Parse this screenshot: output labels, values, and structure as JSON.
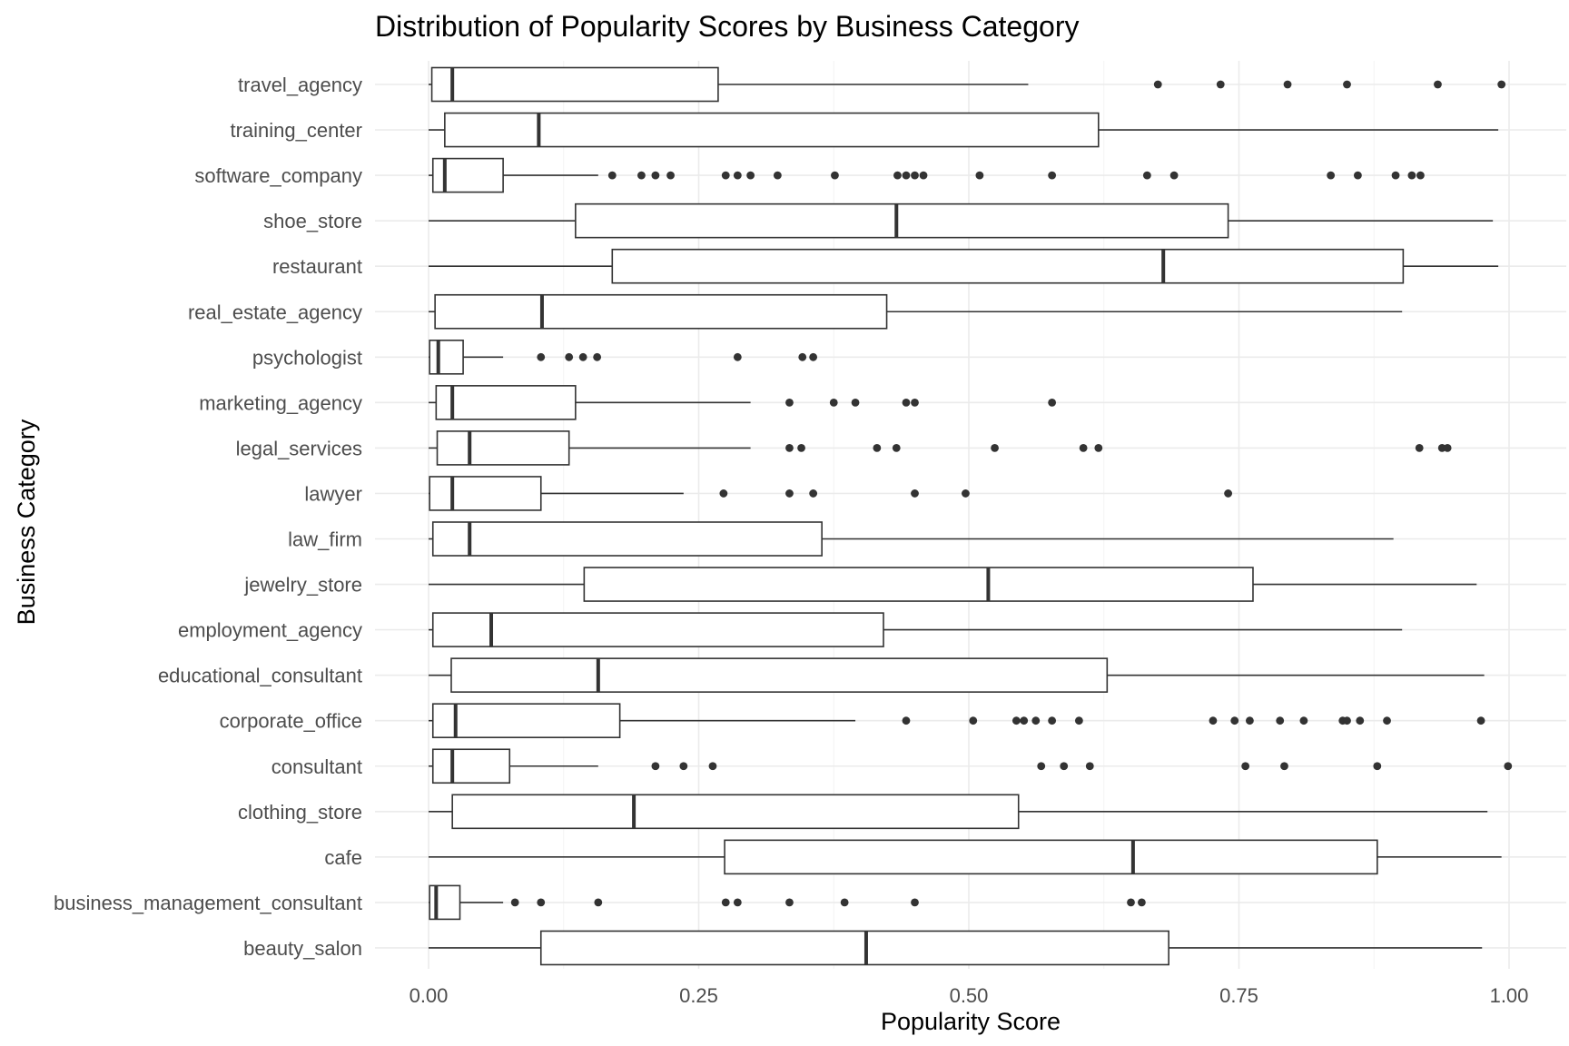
{
  "chart_data": {
    "type": "boxplot",
    "orientation": "horizontal",
    "title": "Distribution of Popularity Scores by Business Category",
    "xlabel": "Popularity Score",
    "ylabel": "Business Category",
    "xlim": [
      0,
      1
    ],
    "x_ticks": [
      {
        "value": 0,
        "label": "0.00"
      },
      {
        "value": 0.25,
        "label": "0.25"
      },
      {
        "value": 0.5,
        "label": "0.50"
      },
      {
        "value": 0.75,
        "label": "0.75"
      },
      {
        "value": 1,
        "label": "1.00"
      }
    ],
    "grid": true,
    "legend": "none",
    "categories": [
      {
        "name": "travel_agency",
        "lower": 0.0,
        "q1": 0.003,
        "median": 0.022,
        "q3": 0.268,
        "upper": 0.555,
        "outliers": [
          0.675,
          0.733,
          0.795,
          0.85,
          0.934,
          0.993
        ]
      },
      {
        "name": "training_center",
        "lower": 0.0,
        "q1": 0.015,
        "median": 0.102,
        "q3": 0.62,
        "upper": 0.99,
        "outliers": []
      },
      {
        "name": "software_company",
        "lower": 0.0,
        "q1": 0.004,
        "median": 0.015,
        "q3": 0.069,
        "upper": 0.157,
        "outliers": [
          0.17,
          0.197,
          0.21,
          0.224,
          0.275,
          0.286,
          0.298,
          0.323,
          0.376,
          0.434,
          0.442,
          0.45,
          0.458,
          0.51,
          0.577,
          0.665,
          0.69,
          0.835,
          0.86,
          0.895,
          0.91,
          0.918
        ]
      },
      {
        "name": "shoe_store",
        "lower": 0.0,
        "q1": 0.136,
        "median": 0.433,
        "q3": 0.74,
        "upper": 0.985,
        "outliers": []
      },
      {
        "name": "restaurant",
        "lower": 0.0,
        "q1": 0.17,
        "median": 0.68,
        "q3": 0.902,
        "upper": 0.99,
        "outliers": []
      },
      {
        "name": "real_estate_agency",
        "lower": 0.0,
        "q1": 0.006,
        "median": 0.105,
        "q3": 0.424,
        "upper": 0.901,
        "outliers": []
      },
      {
        "name": "psychologist",
        "lower": 0.0,
        "q1": 0.001,
        "median": 0.009,
        "q3": 0.032,
        "upper": 0.069,
        "outliers": [
          0.104,
          0.13,
          0.143,
          0.156,
          0.286,
          0.346,
          0.356
        ]
      },
      {
        "name": "marketing_agency",
        "lower": 0.0,
        "q1": 0.007,
        "median": 0.022,
        "q3": 0.136,
        "upper": 0.298,
        "outliers": [
          0.334,
          0.375,
          0.395,
          0.442,
          0.45,
          0.577
        ]
      },
      {
        "name": "legal_services",
        "lower": 0.0,
        "q1": 0.008,
        "median": 0.038,
        "q3": 0.13,
        "upper": 0.298,
        "outliers": [
          0.334,
          0.345,
          0.415,
          0.433,
          0.524,
          0.606,
          0.62,
          0.917,
          0.938,
          0.943
        ]
      },
      {
        "name": "lawyer",
        "lower": 0.0,
        "q1": 0.001,
        "median": 0.022,
        "q3": 0.104,
        "upper": 0.236,
        "outliers": [
          0.273,
          0.334,
          0.356,
          0.45,
          0.497,
          0.74
        ]
      },
      {
        "name": "law_firm",
        "lower": 0.0,
        "q1": 0.004,
        "median": 0.038,
        "q3": 0.364,
        "upper": 0.893,
        "outliers": []
      },
      {
        "name": "jewelry_store",
        "lower": 0.0,
        "q1": 0.144,
        "median": 0.518,
        "q3": 0.763,
        "upper": 0.97,
        "outliers": []
      },
      {
        "name": "employment_agency",
        "lower": 0.0,
        "q1": 0.004,
        "median": 0.058,
        "q3": 0.421,
        "upper": 0.901,
        "outliers": []
      },
      {
        "name": "educational_consultant",
        "lower": 0.0,
        "q1": 0.021,
        "median": 0.157,
        "q3": 0.628,
        "upper": 0.977,
        "outliers": []
      },
      {
        "name": "corporate_office",
        "lower": 0.0,
        "q1": 0.004,
        "median": 0.025,
        "q3": 0.177,
        "upper": 0.395,
        "outliers": [
          0.442,
          0.504,
          0.544,
          0.551,
          0.562,
          0.577,
          0.602,
          0.726,
          0.746,
          0.76,
          0.788,
          0.81,
          0.846,
          0.85,
          0.862,
          0.887,
          0.974
        ]
      },
      {
        "name": "consultant",
        "lower": 0.0,
        "q1": 0.004,
        "median": 0.022,
        "q3": 0.075,
        "upper": 0.157,
        "outliers": [
          0.21,
          0.236,
          0.263,
          0.567,
          0.588,
          0.612,
          0.756,
          0.792,
          0.878,
          0.999
        ]
      },
      {
        "name": "clothing_store",
        "lower": 0.0,
        "q1": 0.022,
        "median": 0.19,
        "q3": 0.546,
        "upper": 0.98,
        "outliers": []
      },
      {
        "name": "cafe",
        "lower": 0.0,
        "q1": 0.274,
        "median": 0.652,
        "q3": 0.878,
        "upper": 0.993,
        "outliers": []
      },
      {
        "name": "business_management_consultant",
        "lower": 0.0,
        "q1": 0.001,
        "median": 0.007,
        "q3": 0.029,
        "upper": 0.069,
        "outliers": [
          0.08,
          0.104,
          0.157,
          0.275,
          0.286,
          0.334,
          0.385,
          0.45,
          0.65,
          0.66
        ]
      },
      {
        "name": "beauty_salon",
        "lower": 0.0,
        "q1": 0.104,
        "median": 0.405,
        "q3": 0.685,
        "upper": 0.975,
        "outliers": []
      }
    ]
  }
}
